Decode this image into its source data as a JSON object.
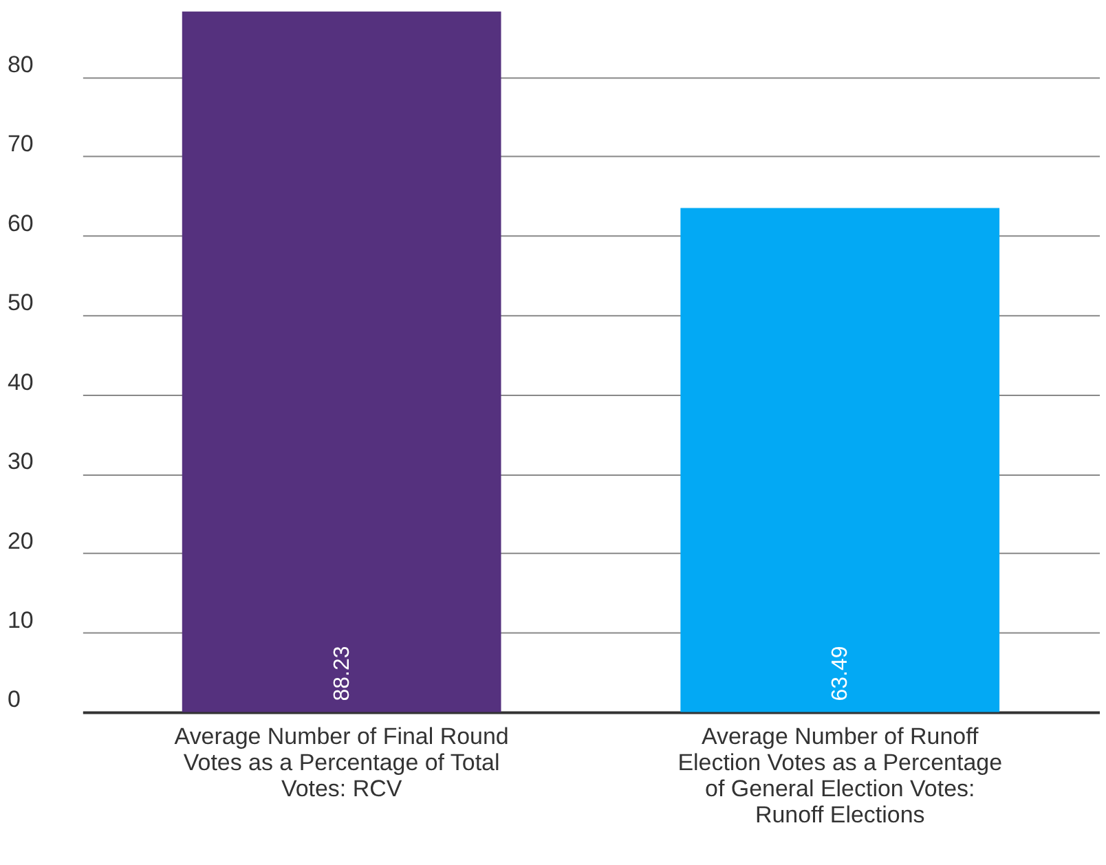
{
  "chart_data": {
    "type": "bar",
    "categories": [
      "Average Number of Final Round Votes as a Percentage of Total Votes: RCV",
      "Average Number of Runoff Election Votes as a Percentage of General Election Votes: Runoff Elections"
    ],
    "values": [
      88.23,
      63.49
    ],
    "colors": [
      "#55317e",
      "#03a9f4"
    ],
    "ylim": [
      0,
      88.23
    ],
    "yticks": [
      0,
      10,
      20,
      30,
      40,
      50,
      60,
      70,
      80
    ],
    "grid": "y",
    "data_labels": true
  }
}
